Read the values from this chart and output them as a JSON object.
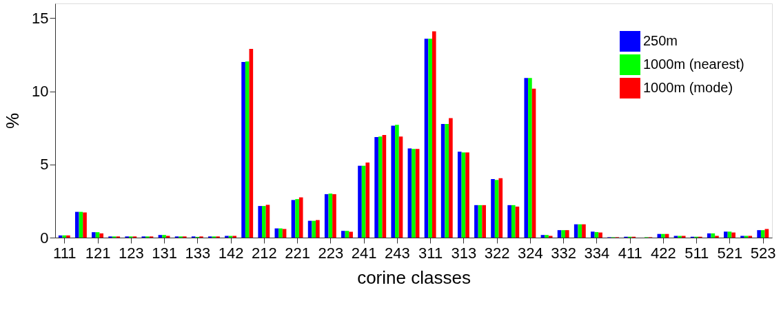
{
  "chart_data": {
    "type": "bar",
    "xlabel": "corine classes",
    "ylabel": "%",
    "categories": [
      "111",
      null,
      "121",
      null,
      "123",
      null,
      "131",
      null,
      "133",
      null,
      "142",
      null,
      "212",
      null,
      "221",
      null,
      "223",
      null,
      "241",
      null,
      "243",
      null,
      "311",
      null,
      "313",
      null,
      "322",
      null,
      "324",
      null,
      "332",
      null,
      "334",
      null,
      "411",
      null,
      "422",
      null,
      "511",
      null,
      "521",
      null,
      "523"
    ],
    "series": [
      {
        "name": "250m",
        "color": "#0000ff",
        "values": [
          0.15,
          1.76,
          0.37,
          0.08,
          0.08,
          0.08,
          0.18,
          0.08,
          0.08,
          0.08,
          0.12,
          12.0,
          2.16,
          0.63,
          2.57,
          1.15,
          2.97,
          0.46,
          4.91,
          6.87,
          7.65,
          6.1,
          13.59,
          7.76,
          5.87,
          2.22,
          4.0,
          2.22,
          10.91,
          0.18,
          0.51,
          0.91,
          0.41,
          0.03,
          0.06,
          null,
          0.25,
          0.12,
          0.06,
          0.29,
          0.41,
          0.12,
          0.51
        ]
      },
      {
        "name": "1000m (nearest)",
        "color": "#00ff00",
        "values": [
          0.15,
          1.76,
          0.37,
          0.08,
          0.08,
          0.08,
          0.18,
          0.08,
          0.05,
          0.08,
          0.12,
          12.04,
          2.16,
          0.63,
          2.63,
          1.15,
          3.01,
          0.46,
          4.91,
          6.91,
          7.71,
          6.06,
          13.59,
          7.76,
          5.82,
          2.22,
          3.94,
          2.22,
          10.91,
          0.18,
          0.51,
          0.91,
          0.38,
          0.03,
          0.06,
          0.03,
          0.25,
          0.12,
          0.06,
          0.29,
          0.41,
          0.12,
          0.51
        ]
      },
      {
        "name": "1000m (mode)",
        "color": "#ff0000",
        "values": [
          0.15,
          1.72,
          0.29,
          0.08,
          0.08,
          0.08,
          0.12,
          0.08,
          0.08,
          0.08,
          0.12,
          12.9,
          2.24,
          0.59,
          2.75,
          1.2,
          2.97,
          0.4,
          5.13,
          7.01,
          6.91,
          6.06,
          14.1,
          8.16,
          5.82,
          2.22,
          4.06,
          2.12,
          10.18,
          0.12,
          0.51,
          0.91,
          0.35,
          0.03,
          0.06,
          0.03,
          0.25,
          0.12,
          0.06,
          0.12,
          0.35,
          0.12,
          0.59
        ]
      }
    ],
    "ylim": [
      0,
      16
    ],
    "yticks": [
      0,
      5,
      10,
      15
    ],
    "grid": false,
    "legend": "top right"
  }
}
